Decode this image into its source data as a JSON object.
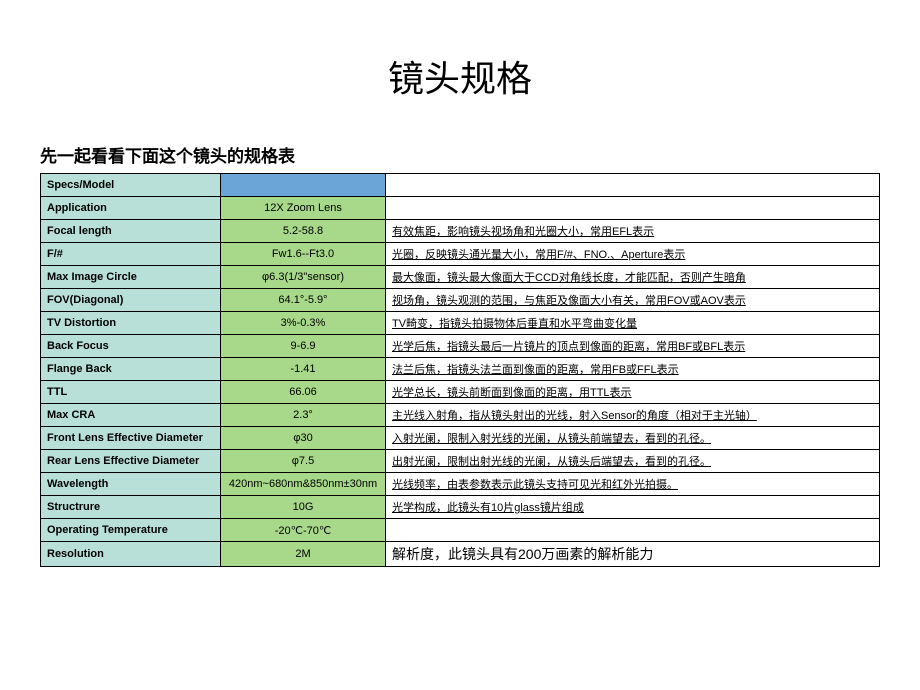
{
  "title": "镜头规格",
  "subtitle": "先一起看看下面这个镜头的规格表",
  "table": {
    "header_label": "Specs/Model",
    "header_bg": "#b8e0d8",
    "value_header_bg": "#6ba5d8",
    "label_bg": "#b8e0d8",
    "value_bg": "#a8d88a",
    "rows": [
      {
        "label": "Application",
        "value": "12X Zoom Lens",
        "desc": ""
      },
      {
        "label": "Focal length",
        "value": "5.2-58.8",
        "desc": "有效焦距，影响镜头视场角和光圈大小，常用EFL表示"
      },
      {
        "label": "F/#",
        "value": "Fw1.6--Ft3.0",
        "desc": "光圈，反映镜头通光量大小，常用F/#、FNO.、Aperture表示"
      },
      {
        "label": "Max Image Circle",
        "value": "φ6.3(1/3\"sensor)",
        "desc": "最大像面，镜头最大像面大于CCD对角线长度，才能匹配，否则产生暗角"
      },
      {
        "label": "FOV(Diagonal)",
        "value": "64.1°-5.9°",
        "desc": "视场角，镜头观测的范围，与焦距及像面大小有关，常用FOV或AOV表示"
      },
      {
        "label": "TV Distortion",
        "value": "3%-0.3%",
        "desc": "TV畸变，指镜头拍摄物体后垂直和水平弯曲变化量"
      },
      {
        "label": "Back Focus",
        "value": "9-6.9",
        "desc": "光学后焦，指镜头最后一片镜片的顶点到像面的距离，常用BF或BFL表示"
      },
      {
        "label": "Flange Back",
        "value": "-1.41",
        "desc": "法兰后焦，指镜头法兰面到像面的距离，常用FB或FFL表示"
      },
      {
        "label": "TTL",
        "value": "66.06",
        "desc": "光学总长，镜头前断面到像面的距离，用TTL表示"
      },
      {
        "label": "Max CRA",
        "value": "2.3°",
        "desc": "主光线入射角，指从镜头射出的光线，射入Sensor的角度（相对于主光轴）"
      },
      {
        "label": "Front Lens Effective Diameter",
        "value": "φ30",
        "desc": "入射光阑，限制入射光线的光阑，从镜头前端望去，看到的孔径。"
      },
      {
        "label": "Rear Lens Effective Diameter",
        "value": "φ7.5",
        "desc": "出射光阑，限制出射光线的光阑，从镜头后端望去，看到的孔径。"
      },
      {
        "label": "Wavelength",
        "value": "420nm~680nm&850nm±30nm",
        "desc": "光线频率，由表参数表示此镜头支持可见光和红外光拍摄。"
      },
      {
        "label": "Structrure",
        "value": "10G",
        "desc": "光学构成，此镜头有10片glass镜片组成"
      },
      {
        "label": "Operating Temperature",
        "value": "-20℃-70℃",
        "desc": ""
      },
      {
        "label": "Resolution",
        "value": "2M",
        "desc": "解析度，此镜头具有200万画素的解析能力",
        "last": true
      }
    ]
  }
}
